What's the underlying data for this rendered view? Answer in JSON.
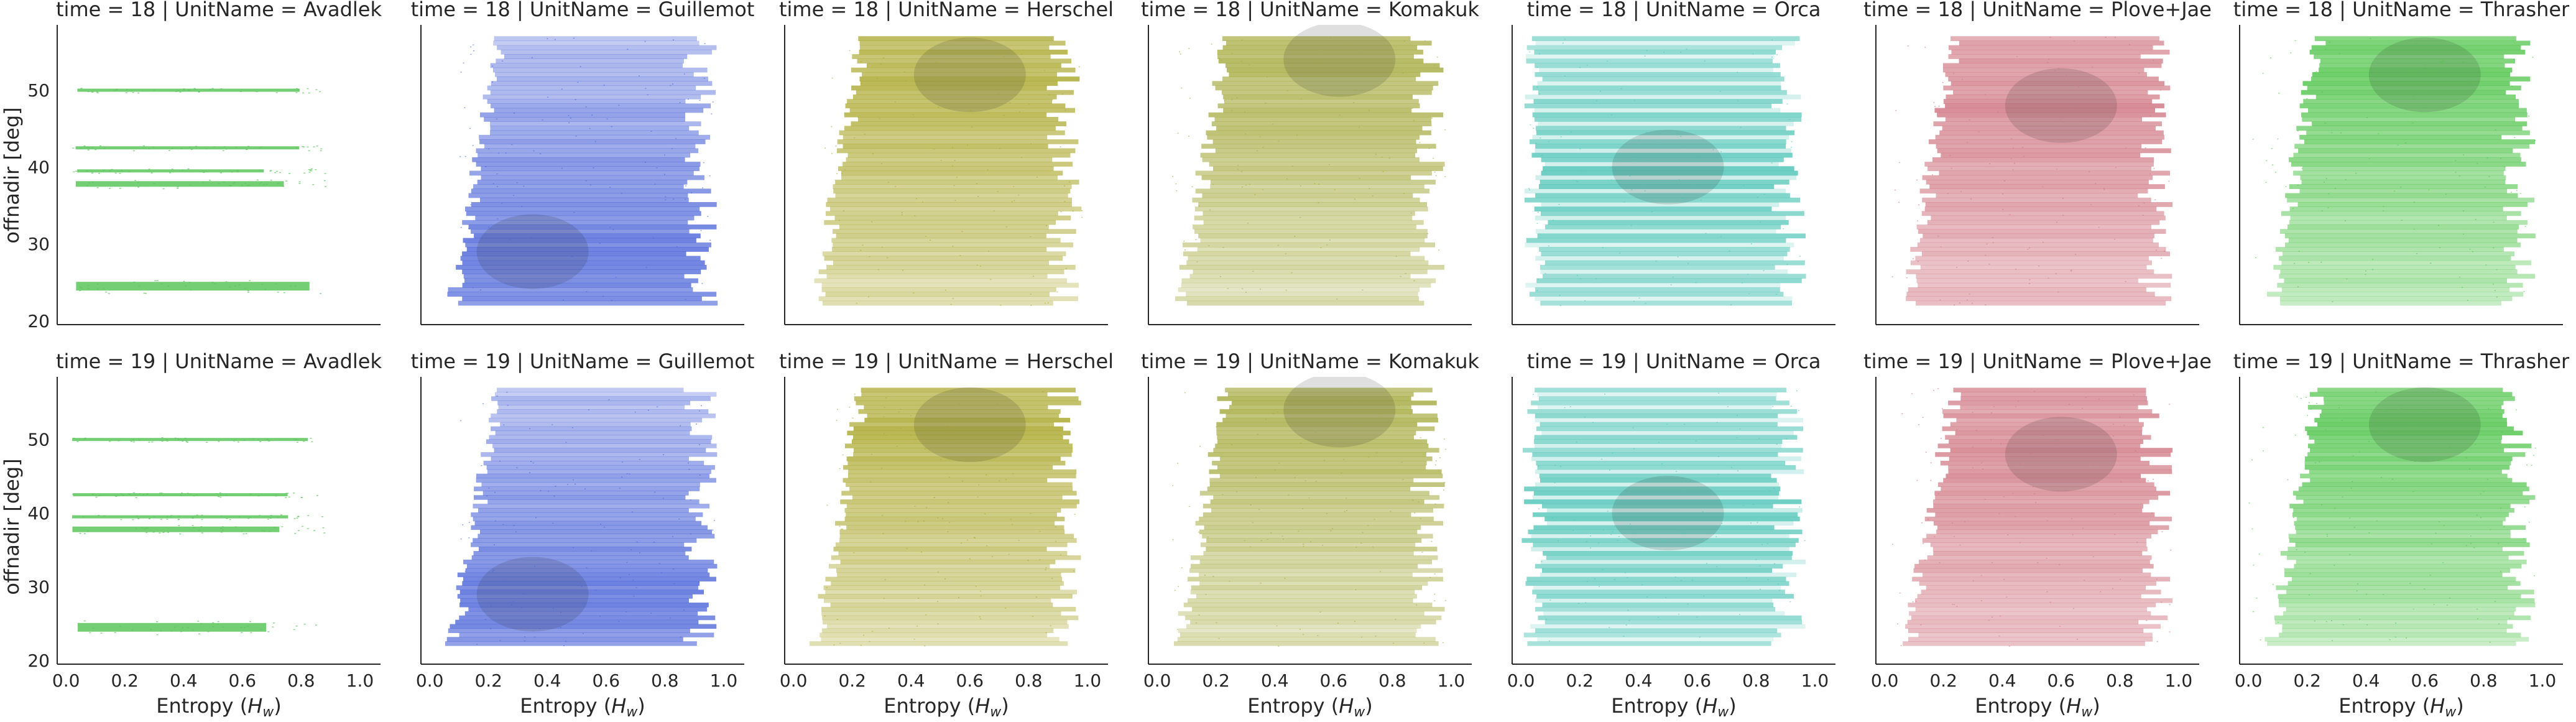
{
  "figure": {
    "y_axis_label": "offnadir [deg]",
    "x_axis_label_prefix": "Entropy (",
    "x_axis_label_var": "H",
    "x_axis_label_sub": "w",
    "x_axis_label_suffix": ")"
  },
  "chart_data": {
    "type": "scatter",
    "facet_row_variable": "time",
    "facet_col_variable": "UnitName",
    "xlabel": "Entropy (H_w)",
    "ylabel": "offnadir [deg]",
    "xlim": [
      -0.03,
      1.07
    ],
    "ylim": [
      19.5,
      58.5
    ],
    "x_ticks": [
      0.0,
      0.2,
      0.4,
      0.6,
      0.8,
      1.0
    ],
    "x_tick_labels": [
      "0.0",
      "0.2",
      "0.4",
      "0.6",
      "0.8",
      "1.0"
    ],
    "y_ticks": [
      20,
      30,
      40,
      50
    ],
    "y_tick_labels": [
      "20",
      "30",
      "40",
      "50"
    ],
    "grid": false,
    "legend": "none",
    "times": [
      "18",
      "19"
    ],
    "units": [
      {
        "name": "Avadlek",
        "color": "#5cc55c",
        "style": "bands",
        "bands": [
          24.5,
          37.8,
          39.5,
          42.5,
          50.0
        ],
        "x_range": [
          0.02,
          0.88
        ]
      },
      {
        "name": "Guillemot",
        "color": "#4a63d8",
        "style": "dense",
        "dense_core": [
          0.35,
          29.0
        ],
        "x_range": [
          0.1,
          0.98
        ]
      },
      {
        "name": "Herschel",
        "color": "#a9a62a",
        "style": "dense",
        "dense_core": [
          0.6,
          52.0
        ],
        "x_range": [
          0.1,
          0.98
        ]
      },
      {
        "name": "Komakuk",
        "color": "#a3a83a",
        "style": "dense",
        "dense_core": [
          0.62,
          54.0
        ],
        "x_range": [
          0.05,
          0.98
        ]
      },
      {
        "name": "Orca",
        "color": "#4dc4b6",
        "style": "striped",
        "dense_core": [
          0.5,
          40.0
        ],
        "x_range": [
          0.02,
          0.97
        ]
      },
      {
        "name": "Plove+Jae",
        "color": "#cf7480",
        "style": "dense",
        "dense_core": [
          0.6,
          48.0
        ],
        "x_range": [
          0.02,
          0.98
        ]
      },
      {
        "name": "Thrasher",
        "color": "#4fc44a",
        "style": "dense",
        "dense_core": [
          0.6,
          52.0
        ],
        "x_range": [
          0.0,
          0.98
        ]
      }
    ],
    "panels": [
      {
        "time": "18",
        "unit": "Avadlek",
        "title": "time = 18 | UnitName = Avadlek"
      },
      {
        "time": "18",
        "unit": "Guillemot",
        "title": "time = 18 | UnitName = Guillemot"
      },
      {
        "time": "18",
        "unit": "Herschel",
        "title": "time = 18 | UnitName = Herschel"
      },
      {
        "time": "18",
        "unit": "Komakuk",
        "title": "time = 18 | UnitName = Komakuk"
      },
      {
        "time": "18",
        "unit": "Orca",
        "title": "time = 18 | UnitName = Orca"
      },
      {
        "time": "18",
        "unit": "Plove+Jae",
        "title": "time = 18 | UnitName = Plove+Jae"
      },
      {
        "time": "18",
        "unit": "Thrasher",
        "title": "time = 18 | UnitName = Thrasher"
      },
      {
        "time": "19",
        "unit": "Avadlek",
        "title": "time = 19 | UnitName = Avadlek"
      },
      {
        "time": "19",
        "unit": "Guillemot",
        "title": "time = 19 | UnitName = Guillemot"
      },
      {
        "time": "19",
        "unit": "Herschel",
        "title": "time = 19 | UnitName = Herschel"
      },
      {
        "time": "19",
        "unit": "Komakuk",
        "title": "time = 19 | UnitName = Komakuk"
      },
      {
        "time": "19",
        "unit": "Orca",
        "title": "time = 19 | UnitName = Orca"
      },
      {
        "time": "19",
        "unit": "Plove+Jae",
        "title": "time = 19 | UnitName = Plove+Jae"
      },
      {
        "time": "19",
        "unit": "Thrasher",
        "title": "time = 19 | UnitName = Thrasher"
      }
    ]
  }
}
